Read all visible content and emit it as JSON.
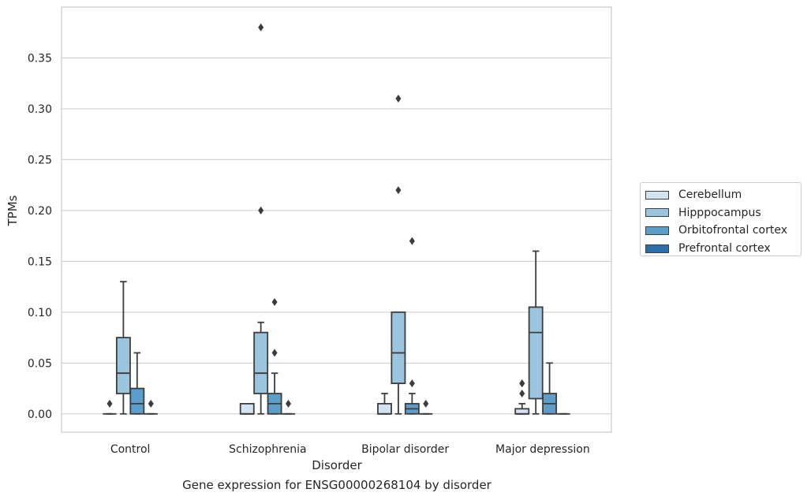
{
  "chart_data": {
    "type": "box",
    "title": "Gene expression for ENSG00000268104 by disorder",
    "xlabel": "Disorder",
    "ylabel": "TPMs",
    "categories": [
      "Control",
      "Schizophrenia",
      "Bipolar disorder",
      "Major depression"
    ],
    "ylim": [
      -0.018,
      0.4
    ],
    "yticks": [
      "0.00",
      "0.05",
      "0.10",
      "0.15",
      "0.20",
      "0.25",
      "0.30",
      "0.35"
    ],
    "grid": true,
    "legend_position": "right",
    "series": [
      {
        "name": "Cerebellum",
        "color": "#d3e3f1",
        "boxes": [
          {
            "q1": 0,
            "median": 0,
            "q3": 0,
            "whisker_low": 0,
            "whisker_high": 0,
            "outliers": [
              0.01
            ]
          },
          {
            "q1": 0,
            "median": 0,
            "q3": 0.01,
            "whisker_low": 0,
            "whisker_high": 0.01,
            "outliers": []
          },
          {
            "q1": 0,
            "median": 0,
            "q3": 0.01,
            "whisker_low": 0,
            "whisker_high": 0.02,
            "outliers": []
          },
          {
            "q1": 0,
            "median": 0,
            "q3": 0.005,
            "whisker_low": 0,
            "whisker_high": 0.01,
            "outliers": [
              0.02,
              0.03,
              0.03
            ]
          }
        ]
      },
      {
        "name": "Hipppocampus",
        "color": "#9ac5df",
        "boxes": [
          {
            "q1": 0.02,
            "median": 0.04,
            "q3": 0.075,
            "whisker_low": 0,
            "whisker_high": 0.13,
            "outliers": []
          },
          {
            "q1": 0.02,
            "median": 0.04,
            "q3": 0.08,
            "whisker_low": 0,
            "whisker_high": 0.09,
            "outliers": [
              0.2,
              0.38
            ]
          },
          {
            "q1": 0.03,
            "median": 0.06,
            "q3": 0.1,
            "whisker_low": 0,
            "whisker_high": 0.1,
            "outliers": [
              0.22,
              0.31
            ]
          },
          {
            "q1": 0.015,
            "median": 0.08,
            "q3": 0.105,
            "whisker_low": 0,
            "whisker_high": 0.16,
            "outliers": []
          }
        ]
      },
      {
        "name": "Orbitofrontal cortex",
        "color": "#5a9ec9",
        "boxes": [
          {
            "q1": 0,
            "median": 0.01,
            "q3": 0.025,
            "whisker_low": 0,
            "whisker_high": 0.06,
            "outliers": []
          },
          {
            "q1": 0,
            "median": 0.01,
            "q3": 0.02,
            "whisker_low": 0,
            "whisker_high": 0.04,
            "outliers": [
              0.06,
              0.11
            ]
          },
          {
            "q1": 0,
            "median": 0.005,
            "q3": 0.01,
            "whisker_low": 0,
            "whisker_high": 0.02,
            "outliers": [
              0.03,
              0.17
            ]
          },
          {
            "q1": 0,
            "median": 0.01,
            "q3": 0.02,
            "whisker_low": 0,
            "whisker_high": 0.05,
            "outliers": []
          }
        ]
      },
      {
        "name": "Prefrontal cortex",
        "color": "#2b6fad",
        "boxes": [
          {
            "q1": 0,
            "median": 0,
            "q3": 0,
            "whisker_low": 0,
            "whisker_high": 0,
            "outliers": [
              0.01
            ]
          },
          {
            "q1": 0,
            "median": 0,
            "q3": 0,
            "whisker_low": 0,
            "whisker_high": 0,
            "outliers": [
              0.01
            ]
          },
          {
            "q1": 0,
            "median": 0,
            "q3": 0,
            "whisker_low": 0,
            "whisker_high": 0,
            "outliers": [
              0.01
            ]
          },
          {
            "q1": 0,
            "median": 0,
            "q3": 0,
            "whisker_low": 0,
            "whisker_high": 0,
            "outliers": []
          }
        ]
      }
    ]
  }
}
